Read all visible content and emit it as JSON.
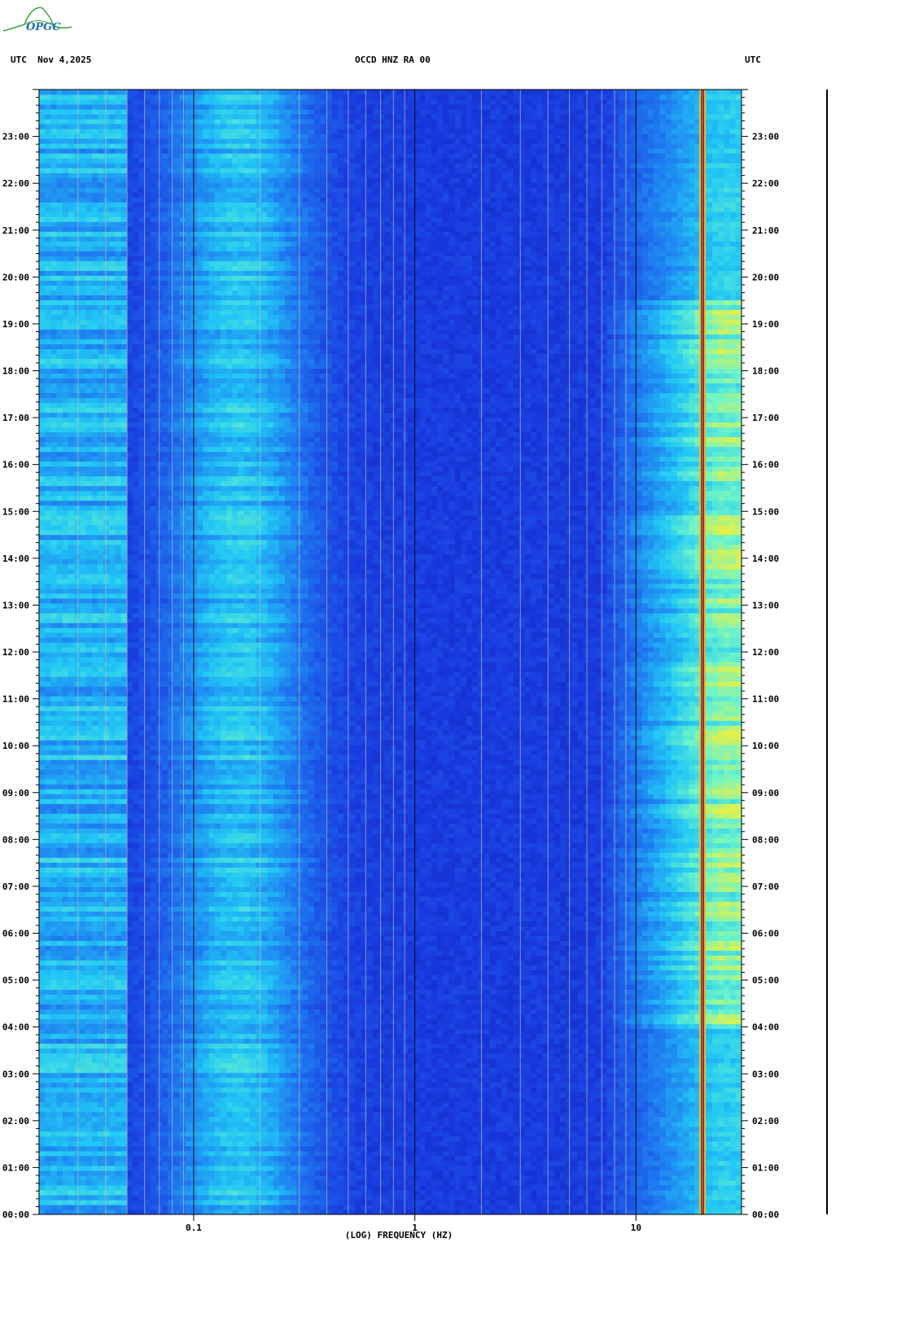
{
  "logo": {
    "text": "OPGC"
  },
  "header": {
    "left": "UTC  Nov 4,2025",
    "center": "OCCD HNZ RA 00",
    "right": "UTC"
  },
  "chart_data": {
    "type": "heatmap",
    "title": "OCCD HNZ RA 00",
    "date": "Nov 4,2025",
    "xlabel": "(LOG) FREQUENCY (HZ)",
    "ylabel": "UTC",
    "x_scale": "log",
    "xlim": [
      0.02,
      30
    ],
    "x_ticks": [
      {
        "value": 0.1,
        "label": "0.1"
      },
      {
        "value": 1,
        "label": "1"
      },
      {
        "value": 10,
        "label": "10"
      }
    ],
    "y_ticks": [
      "00:00",
      "01:00",
      "02:00",
      "03:00",
      "04:00",
      "05:00",
      "06:00",
      "07:00",
      "08:00",
      "09:00",
      "10:00",
      "11:00",
      "12:00",
      "13:00",
      "14:00",
      "15:00",
      "16:00",
      "17:00",
      "18:00",
      "19:00",
      "20:00",
      "21:00",
      "22:00",
      "23:00"
    ],
    "ylim_hours": [
      0,
      24
    ],
    "colormap": [
      "#0a14a8",
      "#1a3ce0",
      "#1f7cf0",
      "#22c8f5",
      "#6ef5c8",
      "#f0f03a",
      "#e83a10",
      "#8a1a1a"
    ],
    "features": {
      "microseism_band_hz": [
        0.1,
        0.3
      ],
      "low_freq_band_hz": [
        0.025,
        0.05
      ],
      "cultural_noise_band_hz": [
        8,
        30
      ],
      "persistent_line_hz": 20,
      "noisy_hours": [
        4,
        19.5
      ]
    }
  }
}
